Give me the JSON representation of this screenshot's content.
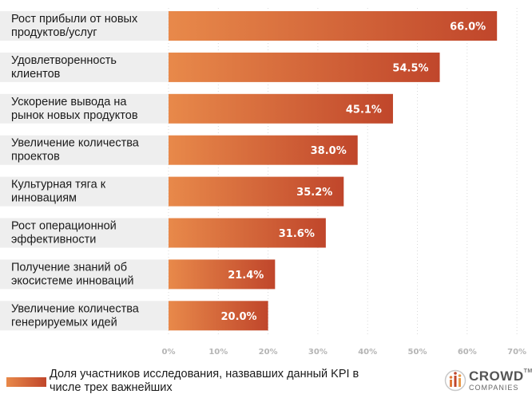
{
  "chart_data": {
    "type": "bar",
    "orientation": "horizontal",
    "categories": [
      "Рост прибыли от новых продуктов/услуг",
      "Удовлетворенность клиентов",
      "Ускорение вывода на рынок новых продуктов",
      "Увеличение количества проектов",
      "Культурная тяга к инновациям",
      "Рост операционной эффективности",
      "Получение знаний об экосистеме инноваций",
      "Увеличение количества генерируемых идей"
    ],
    "category_lines": [
      [
        "Рост прибыли от новых",
        "продуктов/услуг"
      ],
      [
        "Удовлетворенность",
        "клиентов"
      ],
      [
        "Ускорение вывода на",
        "рынок новых продуктов"
      ],
      [
        "Увеличение количества",
        "проектов"
      ],
      [
        "Культурная тяга к",
        "инновациям"
      ],
      [
        "Рост операционной",
        "эффективности"
      ],
      [
        "Получение знаний об",
        "экосистеме инноваций"
      ],
      [
        "Увеличение количества",
        "генерируемых идей"
      ]
    ],
    "values": [
      66.0,
      54.5,
      45.1,
      38.0,
      35.2,
      31.6,
      21.4,
      20.0
    ],
    "value_labels": [
      "66.0%",
      "54.5%",
      "45.1%",
      "38.0%",
      "35.2%",
      "31.6%",
      "21.4%",
      "20.0%"
    ],
    "xlim": [
      0,
      70
    ],
    "xticks": [
      "0%",
      "10%",
      "20%",
      "30%",
      "40%",
      "50%",
      "60%",
      "70%"
    ],
    "grid": true,
    "legend_position": "bottom-left",
    "series": [
      {
        "name": "Доля участников исследования, назвавших данный KPI в числе трех важнейших"
      }
    ],
    "colors": {
      "bar_start": "#e8894a",
      "bar_end": "#c0462b",
      "label_band": "#eeeeee",
      "grid": "#d9d9d9",
      "tick": "#b5b5b5"
    }
  },
  "legend": {
    "text_line1": "Доля участников исследования, назвавших данный KPI в",
    "text_line2": "числе трех важнейших"
  },
  "logo": {
    "title": "CROWD",
    "tm": "TM",
    "subtitle": "COMPANIES"
  }
}
